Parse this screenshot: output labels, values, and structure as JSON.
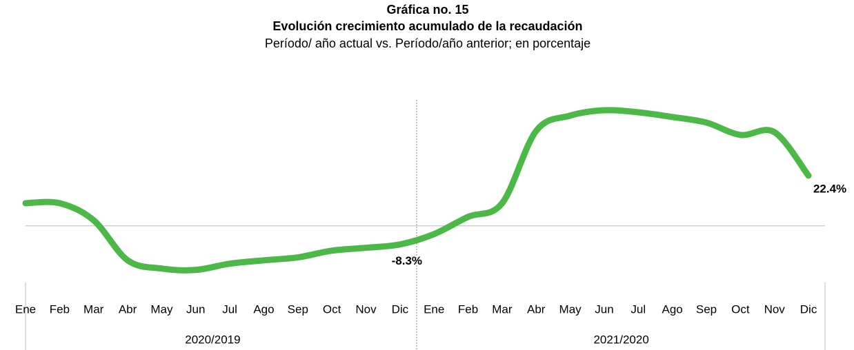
{
  "chart_data": {
    "type": "line",
    "title": "Gráfica no. 15",
    "subtitle": "Evolución crecimiento acumulado de la recaudación",
    "note": "Período/ año actual vs. Período/año anterior; en porcentaje",
    "categories": [
      "Ene",
      "Feb",
      "Mar",
      "Abr",
      "May",
      "Jun",
      "Jul",
      "Ago",
      "Sep",
      "Oct",
      "Nov",
      "Dic",
      "Ene",
      "Feb",
      "Mar",
      "Abr",
      "May",
      "Jun",
      "Jul",
      "Ago",
      "Sep",
      "Oct",
      "Nov",
      "Dic"
    ],
    "groups": [
      "2020/2019",
      "2021/2020"
    ],
    "series": [
      {
        "name": "Crecimiento acumulado",
        "color": "#4cb848",
        "values": [
          10.1,
          10.1,
          2.5,
          -15.4,
          -19.1,
          -19.7,
          -16.9,
          -15.4,
          -14.1,
          -11.1,
          -9.8,
          -8.3,
          -3.7,
          4.0,
          10.1,
          42.4,
          49.2,
          51.6,
          50.7,
          48.6,
          46.1,
          40.6,
          41.8,
          22.4
        ],
        "value_labels": [
          null,
          null,
          null,
          null,
          null,
          null,
          null,
          null,
          null,
          null,
          null,
          "-8.3%",
          null,
          null,
          null,
          null,
          null,
          null,
          null,
          null,
          null,
          null,
          null,
          "22.4%"
        ]
      }
    ],
    "ylim": [
      -25,
      55
    ]
  }
}
